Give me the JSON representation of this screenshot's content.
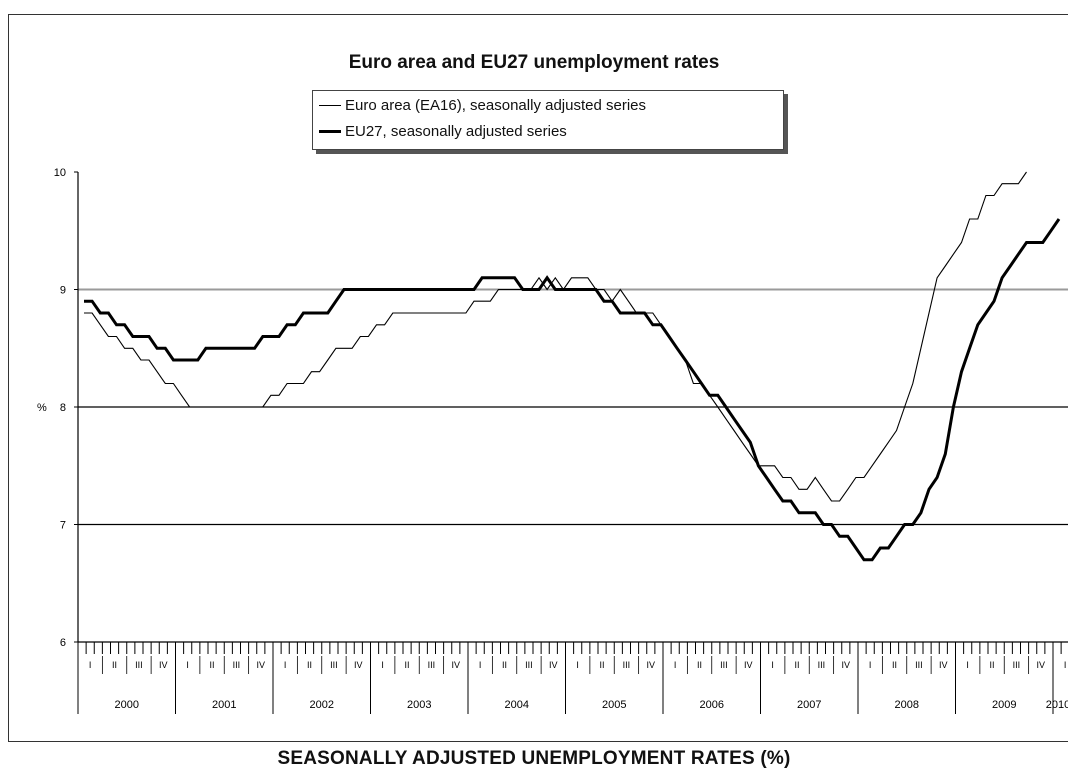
{
  "caption": "SEASONALLY ADJUSTED UNEMPLOYMENT RATES (%)",
  "chart_data": {
    "type": "line",
    "title": "Euro area and EU27 unemployment rates",
    "ylabel": "%",
    "ylim": [
      6,
      10
    ],
    "yticks": [
      "6",
      "7",
      "8",
      "9",
      "10"
    ],
    "gridlines": [
      7,
      8,
      9
    ],
    "quarter_labels": [
      "I",
      "II",
      "III",
      "IV"
    ],
    "years": [
      "2000",
      "2001",
      "2002",
      "2003",
      "2004",
      "2005",
      "2006",
      "2007",
      "2008",
      "2009",
      "2010"
    ],
    "x_start": "2000-01",
    "legend_placement": "top-center",
    "series": [
      {
        "name": "Euro area (EA16), seasonally adjusted series",
        "color": "#000000",
        "stroke": "thin",
        "values": [
          8.8,
          8.8,
          8.7,
          8.6,
          8.6,
          8.5,
          8.5,
          8.4,
          8.4,
          8.3,
          8.2,
          8.2,
          8.1,
          8.0,
          8.0,
          8.0,
          8.0,
          8.0,
          8.0,
          8.0,
          8.0,
          8.0,
          8.0,
          8.1,
          8.1,
          8.2,
          8.2,
          8.2,
          8.3,
          8.3,
          8.4,
          8.5,
          8.5,
          8.5,
          8.6,
          8.6,
          8.7,
          8.7,
          8.8,
          8.8,
          8.8,
          8.8,
          8.8,
          8.8,
          8.8,
          8.8,
          8.8,
          8.8,
          8.9,
          8.9,
          8.9,
          9.0,
          9.0,
          9.0,
          9.0,
          9.0,
          9.1,
          9.0,
          9.1,
          9.0,
          9.1,
          9.1,
          9.1,
          9.0,
          9.0,
          8.9,
          9.0,
          8.9,
          8.8,
          8.8,
          8.8,
          8.7,
          8.6,
          8.5,
          8.4,
          8.2,
          8.2,
          8.1,
          8.0,
          7.9,
          7.8,
          7.7,
          7.6,
          7.5,
          7.5,
          7.5,
          7.4,
          7.4,
          7.3,
          7.3,
          7.4,
          7.3,
          7.2,
          7.2,
          7.3,
          7.4,
          7.4,
          7.5,
          7.6,
          7.7,
          7.8,
          8.0,
          8.2,
          8.5,
          8.8,
          9.1,
          9.2,
          9.3,
          9.4,
          9.6,
          9.6,
          9.8,
          9.8,
          9.9,
          9.9,
          9.9,
          10.0
        ]
      },
      {
        "name": "EU27, seasonally adjusted series",
        "color": "#000000",
        "stroke": "thick",
        "values": [
          8.9,
          8.9,
          8.8,
          8.8,
          8.7,
          8.7,
          8.6,
          8.6,
          8.6,
          8.5,
          8.5,
          8.4,
          8.4,
          8.4,
          8.4,
          8.5,
          8.5,
          8.5,
          8.5,
          8.5,
          8.5,
          8.5,
          8.6,
          8.6,
          8.6,
          8.7,
          8.7,
          8.8,
          8.8,
          8.8,
          8.8,
          8.9,
          9.0,
          9.0,
          9.0,
          9.0,
          9.0,
          9.0,
          9.0,
          9.0,
          9.0,
          9.0,
          9.0,
          9.0,
          9.0,
          9.0,
          9.0,
          9.0,
          9.0,
          9.1,
          9.1,
          9.1,
          9.1,
          9.1,
          9.0,
          9.0,
          9.0,
          9.1,
          9.0,
          9.0,
          9.0,
          9.0,
          9.0,
          9.0,
          8.9,
          8.9,
          8.8,
          8.8,
          8.8,
          8.8,
          8.7,
          8.7,
          8.6,
          8.5,
          8.4,
          8.3,
          8.2,
          8.1,
          8.1,
          8.0,
          7.9,
          7.8,
          7.7,
          7.5,
          7.4,
          7.3,
          7.2,
          7.2,
          7.1,
          7.1,
          7.1,
          7.0,
          7.0,
          6.9,
          6.9,
          6.8,
          6.7,
          6.7,
          6.8,
          6.8,
          6.9,
          7.0,
          7.0,
          7.1,
          7.3,
          7.4,
          7.6,
          8.0,
          8.3,
          8.5,
          8.7,
          8.8,
          8.9,
          9.1,
          9.2,
          9.3,
          9.4,
          9.4,
          9.4,
          9.5,
          9.6
        ]
      }
    ]
  }
}
